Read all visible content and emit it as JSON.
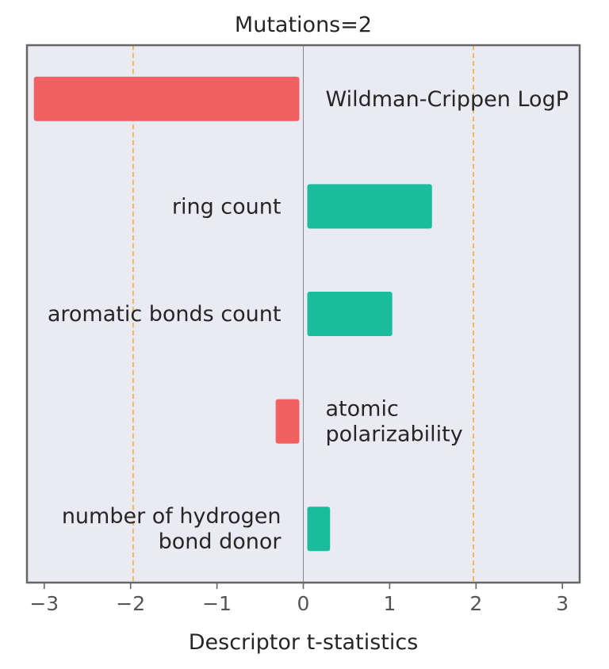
{
  "chart_data": {
    "type": "bar",
    "orientation": "horizontal",
    "title": "Mutations=2",
    "xlabel": "Descriptor t-statistics",
    "ylabel": "",
    "xlim": [
      -3.2,
      3.2
    ],
    "xticks": [
      -3,
      -2,
      -1,
      0,
      1,
      2,
      3
    ],
    "xtick_labels": [
      "−3",
      "−2",
      "−1",
      "0",
      "1",
      "2",
      "3"
    ],
    "threshold_lines": [
      -1.97,
      1.97
    ],
    "categories": [
      [
        "Wildman-Crippen LogP"
      ],
      [
        "ring count"
      ],
      [
        "aromatic bonds count"
      ],
      [
        "atomic",
        "polarizability"
      ],
      [
        "number of hydrogen",
        "bond donor"
      ]
    ],
    "values": [
      -3.12,
      1.49,
      1.03,
      -0.32,
      0.31
    ],
    "grid": false,
    "legend": "none"
  },
  "colors": {
    "positive": "#1abc9c",
    "negative": "#f26161",
    "background": "#eaeaf2",
    "frame": "#666666",
    "threshold": "#f5a742",
    "zero_line": "#8a8a8a"
  }
}
